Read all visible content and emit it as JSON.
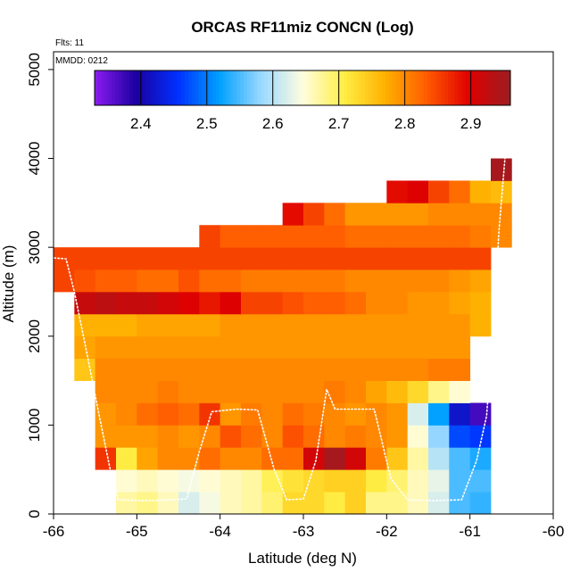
{
  "chart_data": {
    "type": "heatmap",
    "title": "ORCAS RF11miz CONCN (Log)",
    "flights_label": "Flts: 11",
    "date_label": "MMDD: 0212",
    "xlabel": "Latitude (deg N)",
    "ylabel": "Altitude (m)",
    "xlim": [
      -66,
      -60
    ],
    "ylim": [
      0,
      5200
    ],
    "xticks": [
      -66,
      -65,
      -64,
      -63,
      -62,
      -61,
      -60
    ],
    "yticks": [
      0,
      1000,
      2000,
      3000,
      4000,
      5000
    ],
    "colorbar": {
      "min": 2.33,
      "max": 2.96,
      "ticks": [
        2.4,
        2.5,
        2.6,
        2.7,
        2.8,
        2.9
      ],
      "colors": [
        "#8c1cf0",
        "#1a00a0",
        "#0030ff",
        "#00a0ff",
        "#99d8ff",
        "#fffde0",
        "#ffee44",
        "#ffb000",
        "#ff5a00",
        "#e00000",
        "#9a1d22"
      ]
    },
    "cell_width_deg": 0.25,
    "cell_height_m": 250,
    "grid": [
      {
        "y": 0,
        "x0": -65.25,
        "values": [
          2.67,
          2.68,
          2.66,
          2.62,
          2.64,
          2.66,
          2.67,
          2.69,
          2.73,
          2.73,
          2.71,
          2.74,
          2.68,
          2.68,
          2.66,
          2.62,
          2.55,
          2.54
        ]
      },
      {
        "y": 250,
        "x0": -65.25,
        "values": [
          2.65,
          2.66,
          2.65,
          2.64,
          2.65,
          2.66,
          2.67,
          2.7,
          2.72,
          2.73,
          2.74,
          2.74,
          2.71,
          2.69,
          2.66,
          2.63,
          2.55,
          2.55
        ]
      },
      {
        "y": 500,
        "x0": -65.5,
        "values": [
          2.86,
          2.71,
          2.78,
          2.8,
          2.8,
          2.82,
          2.8,
          2.8,
          2.82,
          2.82,
          2.91,
          2.95,
          2.91,
          2.81,
          2.75,
          2.67,
          2.6,
          2.55,
          2.53
        ]
      },
      {
        "y": 750,
        "x0": -65.5,
        "values": [
          2.79,
          2.79,
          2.79,
          2.8,
          2.79,
          2.8,
          2.84,
          2.82,
          2.8,
          2.84,
          2.82,
          2.8,
          2.81,
          2.8,
          2.79,
          2.65,
          2.58,
          2.47,
          2.46
        ]
      },
      {
        "y": 1000,
        "x0": -65.5,
        "values": [
          2.79,
          2.8,
          2.82,
          2.83,
          2.82,
          2.86,
          2.79,
          2.81,
          2.8,
          2.82,
          2.81,
          2.8,
          2.79,
          2.8,
          2.79,
          2.62,
          2.52,
          2.42,
          2.37
        ]
      },
      {
        "y": 1250,
        "x0": -65.5,
        "values": [
          2.8,
          2.8,
          2.8,
          2.81,
          2.8,
          2.8,
          2.8,
          2.8,
          2.8,
          2.8,
          2.8,
          2.81,
          2.8,
          2.78,
          2.76,
          2.73,
          2.68,
          2.65
        ]
      },
      {
        "y": 1500,
        "x0": -65.75,
        "values": [
          2.75,
          2.8,
          2.8,
          2.8,
          2.8,
          2.8,
          2.8,
          2.8,
          2.8,
          2.8,
          2.8,
          2.8,
          2.8,
          2.8,
          2.8,
          2.8,
          2.8,
          2.81,
          2.81
        ]
      },
      {
        "y": 1750,
        "x0": -65.75,
        "values": [
          2.78,
          2.79,
          2.79,
          2.79,
          2.79,
          2.79,
          2.79,
          2.79,
          2.79,
          2.79,
          2.79,
          2.79,
          2.79,
          2.79,
          2.79,
          2.79,
          2.79,
          2.79,
          2.79
        ]
      },
      {
        "y": 2000,
        "x0": -65.75,
        "values": [
          2.77,
          2.77,
          2.77,
          2.78,
          2.78,
          2.78,
          2.78,
          2.79,
          2.79,
          2.79,
          2.79,
          2.79,
          2.79,
          2.79,
          2.79,
          2.79,
          2.79,
          2.79,
          2.79,
          2.77
        ]
      },
      {
        "y": 2250,
        "x0": -65.75,
        "values": [
          2.92,
          2.93,
          2.92,
          2.92,
          2.91,
          2.9,
          2.88,
          2.9,
          2.85,
          2.85,
          2.84,
          2.83,
          2.83,
          2.82,
          2.8,
          2.8,
          2.79,
          2.79,
          2.78,
          2.77
        ]
      },
      {
        "y": 2500,
        "x0": -66,
        "values": [
          2.85,
          2.84,
          2.83,
          2.83,
          2.82,
          2.82,
          2.84,
          2.82,
          2.82,
          2.81,
          2.81,
          2.81,
          2.81,
          2.81,
          2.8,
          2.8,
          2.8,
          2.8,
          2.8,
          2.79,
          2.78
        ]
      },
      {
        "y": 2750,
        "x0": -66,
        "values": [
          2.85,
          2.85,
          2.85,
          2.85,
          2.85,
          2.85,
          2.85,
          2.85,
          2.85,
          2.85,
          2.85,
          2.85,
          2.85,
          2.85,
          2.85,
          2.85,
          2.85,
          2.85,
          2.85,
          2.85,
          2.85
        ]
      },
      {
        "y": 3000,
        "x0": -64.25,
        "values": [
          2.85,
          2.83,
          2.83,
          2.83,
          2.83,
          2.83,
          2.83,
          2.82,
          2.82,
          2.82,
          2.82,
          2.82,
          2.82,
          2.81,
          2.8
        ]
      },
      {
        "y": 3250,
        "x0": -63.25,
        "values": [
          2.89,
          2.85,
          2.82,
          2.79,
          2.79,
          2.79,
          2.79,
          2.8,
          2.8,
          2.8,
          2.8
        ]
      },
      {
        "y": 3500,
        "x0": -62.0,
        "values": [
          2.89,
          2.9,
          2.85,
          2.82,
          2.77,
          2.76
        ]
      },
      {
        "y": 3750,
        "x0": -60.75,
        "values": [
          2.95
        ]
      }
    ],
    "flight_track": [
      [
        -65.99,
        2880
      ],
      [
        -65.85,
        2870
      ],
      [
        -65.75,
        2500
      ],
      [
        -65.62,
        1900
      ],
      [
        -65.45,
        1100
      ],
      [
        -65.32,
        500
      ],
      [
        -65.22,
        160
      ],
      [
        -64.9,
        150
      ],
      [
        -64.6,
        160
      ],
      [
        -64.4,
        170
      ],
      [
        -64.25,
        700
      ],
      [
        -64.1,
        1150
      ],
      [
        -63.8,
        1180
      ],
      [
        -63.55,
        1170
      ],
      [
        -63.35,
        500
      ],
      [
        -63.2,
        160
      ],
      [
        -63.0,
        170
      ],
      [
        -62.85,
        600
      ],
      [
        -62.72,
        1400
      ],
      [
        -62.62,
        1180
      ],
      [
        -62.15,
        1180
      ],
      [
        -61.95,
        400
      ],
      [
        -61.75,
        160
      ],
      [
        -61.45,
        150
      ],
      [
        -61.1,
        160
      ],
      [
        -60.92,
        600
      ],
      [
        -60.8,
        1100
      ],
      [
        -60.72,
        2100
      ],
      [
        -60.65,
        3200
      ],
      [
        -60.58,
        4000
      ],
      [
        -60.45,
        5150
      ]
    ]
  }
}
